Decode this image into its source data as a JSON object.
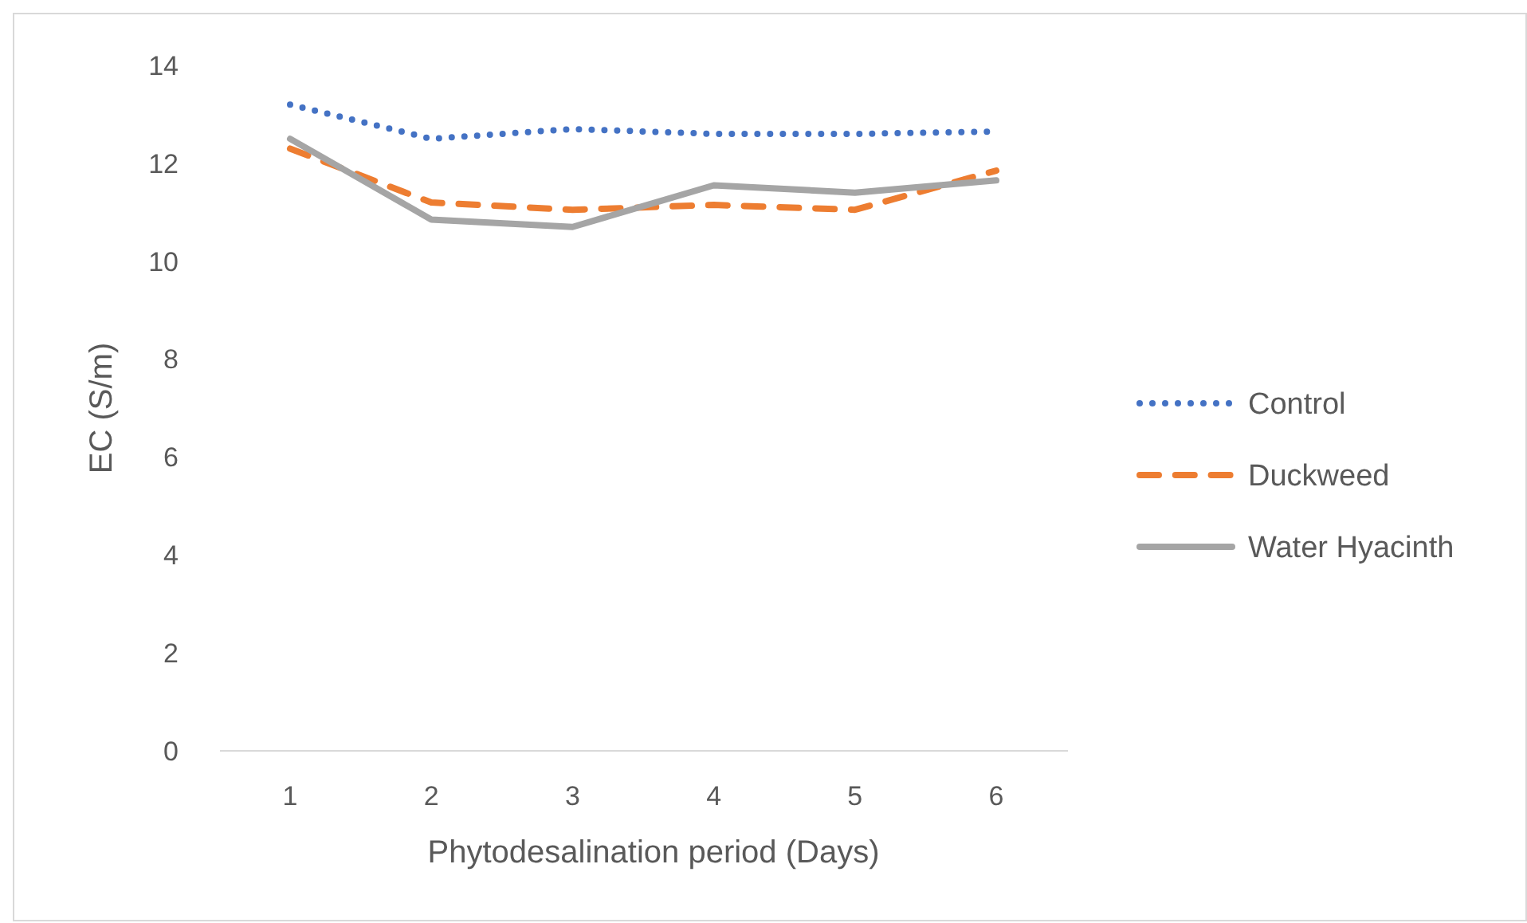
{
  "chart_data": {
    "type": "line",
    "xlabel": "Phytodesalination period (Days)",
    "ylabel": "EC (S/m)",
    "categories": [
      "1",
      "2",
      "3",
      "4",
      "5",
      "6"
    ],
    "ylim": [
      0,
      14
    ],
    "yticks": [
      0,
      2,
      4,
      6,
      8,
      10,
      12,
      14
    ],
    "grid": false,
    "legend": "right",
    "marker": "none",
    "series": [
      {
        "name": "Control",
        "color": "#4472c4",
        "line_style": "dotted",
        "values": [
          13.2,
          12.5,
          12.7,
          12.6,
          12.6,
          12.65
        ]
      },
      {
        "name": "Duckweed",
        "color": "#ed7d31",
        "line_style": "dashed",
        "values": [
          12.3,
          11.2,
          11.05,
          11.15,
          11.05,
          11.85
        ]
      },
      {
        "name": "Water Hyacinth",
        "color": "#a5a5a5",
        "line_style": "solid",
        "values": [
          12.5,
          10.85,
          10.7,
          11.55,
          11.4,
          11.65
        ]
      }
    ]
  }
}
